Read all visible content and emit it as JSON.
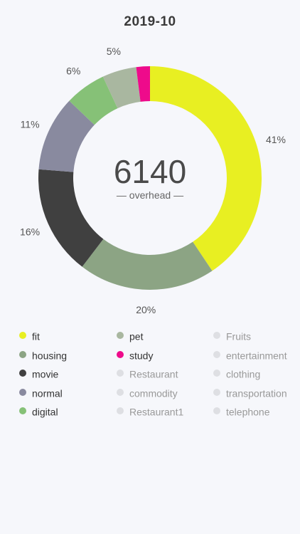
{
  "header": {
    "title": "2019-10"
  },
  "center": {
    "total": "6140",
    "caption": "— overhead —"
  },
  "colors": {
    "fit": "#e8ef22",
    "pet": "#a9b7a0",
    "housing": "#8ca484",
    "study": "#ee0b8b",
    "movie": "#404040",
    "normal": "#898a9f",
    "digital": "#86c177",
    "inactive": "#dedfe3"
  },
  "chart_data": {
    "type": "pie",
    "title": "2019-10",
    "categories": [
      "fit",
      "housing",
      "movie",
      "normal",
      "digital",
      "pet",
      "study"
    ],
    "values": [
      41,
      20,
      16,
      11,
      6,
      5,
      2
    ],
    "labels": [
      "41%",
      "20%",
      "16%",
      "11%",
      "6%",
      "5%",
      ""
    ],
    "colors": [
      "#e8ef22",
      "#8ca484",
      "#404040",
      "#898a9f",
      "#86c177",
      "#a9b7a0",
      "#ee0b8b"
    ],
    "total": 6140,
    "legend_position": "bottom"
  },
  "legend": {
    "columns": [
      [
        {
          "label": "fit",
          "color": "#e8ef22",
          "active": true
        },
        {
          "label": "housing",
          "color": "#8ca484",
          "active": true
        },
        {
          "label": "movie",
          "color": "#404040",
          "active": true
        },
        {
          "label": "normal",
          "color": "#898a9f",
          "active": true
        },
        {
          "label": "digital",
          "color": "#86c177",
          "active": true
        }
      ],
      [
        {
          "label": "pet",
          "color": "#a9b7a0",
          "active": true
        },
        {
          "label": "study",
          "color": "#ee0b8b",
          "active": true
        },
        {
          "label": "Restaurant",
          "color": "#dedfe3",
          "active": false
        },
        {
          "label": "commodity",
          "color": "#dedfe3",
          "active": false
        },
        {
          "label": "Restaurant1",
          "color": "#dedfe3",
          "active": false
        }
      ],
      [
        {
          "label": "Fruits",
          "color": "#dedfe3",
          "active": false
        },
        {
          "label": "entertainment",
          "color": "#dedfe3",
          "active": false
        },
        {
          "label": "clothing",
          "color": "#dedfe3",
          "active": false
        },
        {
          "label": "transportation",
          "color": "#dedfe3",
          "active": false
        },
        {
          "label": "telephone",
          "color": "#dedfe3",
          "active": false
        }
      ]
    ]
  }
}
